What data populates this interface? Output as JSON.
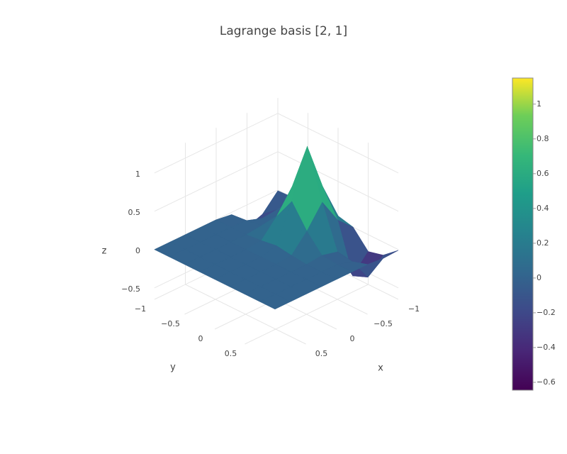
{
  "chart_data": {
    "type": "surface",
    "title": "Lagrange basis [2, 1]",
    "xlabel": "x",
    "ylabel": "y",
    "zlabel": "z",
    "x": [
      -1,
      -0.75,
      -0.5,
      -0.25,
      0,
      0.25,
      0.5,
      0.75,
      1
    ],
    "y": [
      -1,
      -0.75,
      -0.5,
      -0.25,
      0,
      0.25,
      0.5,
      0.75,
      1
    ],
    "z": [
      [
        -0.01,
        -0.22,
        -0.29,
        -0.03,
        0,
        0,
        0,
        0,
        0
      ],
      [
        0,
        -0.06,
        -0.08,
        -0.01,
        0,
        0,
        0,
        0,
        0
      ],
      [
        0,
        0.02,
        0.05,
        0.02,
        0,
        0,
        0,
        0,
        0
      ],
      [
        0.02,
        0.24,
        0.53,
        0.24,
        0.02,
        0,
        0,
        0,
        0
      ],
      [
        0.05,
        0.53,
        1.15,
        0.53,
        0.05,
        0,
        0,
        0,
        0
      ],
      [
        0,
        0.19,
        0.52,
        0.24,
        0.02,
        0,
        0,
        0,
        0
      ],
      [
        -0.22,
        -0.44,
        -0.03,
        0.02,
        0,
        0,
        0,
        0,
        0
      ],
      [
        -0.17,
        -0.36,
        -0.06,
        0,
        0,
        0,
        0,
        0,
        0
      ],
      [
        -0.01,
        -0.02,
        0,
        0,
        0,
        0,
        0,
        0,
        0
      ]
    ],
    "xlim": [
      -1,
      1
    ],
    "ylim": [
      -1,
      1
    ],
    "zlim": [
      -0.65,
      1.2
    ],
    "xticks": [
      {
        "value": -1,
        "label": "−1"
      },
      {
        "value": -0.5,
        "label": "−0.5"
      },
      0,
      0.5
    ],
    "yticks": [
      {
        "value": -1,
        "label": "−1"
      },
      {
        "value": -0.5,
        "label": "−0.5"
      },
      0,
      0.5
    ],
    "zticks": [
      {
        "value": -0.5,
        "label": "−0.5"
      },
      0,
      0.5,
      1
    ],
    "colorscale": "viridis",
    "colorbar": {
      "clim": [
        -0.645,
        1.15
      ],
      "ticks": [
        {
          "value": -0.6,
          "label": "−0.6"
        },
        {
          "value": -0.4,
          "label": "−0.4"
        },
        {
          "value": -0.2,
          "label": "−0.2"
        },
        0,
        0.2,
        0.4,
        0.6,
        0.8,
        1
      ]
    }
  }
}
